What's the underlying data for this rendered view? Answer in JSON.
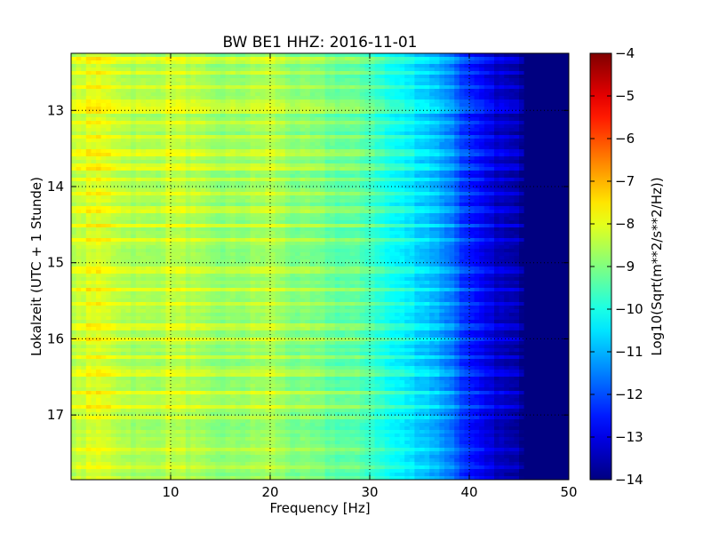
{
  "chart_data": {
    "type": "heatmap",
    "title": "BW BE1 HHZ: 2016-11-01",
    "xlabel": "Frequency [Hz]",
    "ylabel": "Lokalzeit (UTC + 1 Stunde)",
    "xlim": [
      0,
      50
    ],
    "ylim": [
      12.25,
      17.85
    ],
    "x_ticks": [
      10,
      20,
      30,
      40,
      50
    ],
    "x_tick_labels": [
      "10",
      "20",
      "30",
      "40",
      "50"
    ],
    "y_ticks": [
      13,
      14,
      15,
      16,
      17
    ],
    "y_tick_labels": [
      "13",
      "14",
      "15",
      "16",
      "17"
    ],
    "grid": true,
    "colormap": "jet",
    "colorbar": {
      "label": "Log10(Sqrt(m**2/s**2/Hz))",
      "range": [
        -14,
        -4
      ],
      "ticks": [
        -4,
        -5,
        -6,
        -7,
        -8,
        -9,
        -10,
        -11,
        -12,
        -13,
        -14
      ],
      "tick_labels": [
        "−4",
        "−5",
        "−6",
        "−7",
        "−8",
        "−9",
        "−10",
        "−11",
        "−12",
        "−13",
        "−14"
      ]
    },
    "spectrum_profile": {
      "frequency_hz": [
        0,
        2,
        4,
        6,
        8,
        10,
        12,
        14,
        16,
        18,
        20,
        22,
        24,
        26,
        28,
        30,
        32,
        34,
        36,
        38,
        40,
        42,
        44,
        45,
        46,
        50
      ],
      "log10_amplitude": [
        -8.6,
        -8.1,
        -8.3,
        -8.6,
        -8.7,
        -8.4,
        -8.6,
        -8.9,
        -8.9,
        -8.8,
        -8.6,
        -9.0,
        -9.1,
        -9.3,
        -9.4,
        -9.6,
        -10.2,
        -10.5,
        -10.9,
        -11.5,
        -12.6,
        -13.2,
        -13.6,
        -13.8,
        -14.0,
        -14.0
      ]
    },
    "loud_hours": [
      12.35,
      12.52,
      12.7,
      12.9,
      13.0,
      13.15,
      13.35,
      13.55,
      13.75,
      13.9,
      14.1,
      14.3,
      14.5,
      14.7,
      15.1,
      15.35,
      15.55,
      15.85,
      16.0,
      16.25,
      16.45,
      16.7,
      16.9,
      17.05,
      17.45,
      17.7
    ]
  }
}
